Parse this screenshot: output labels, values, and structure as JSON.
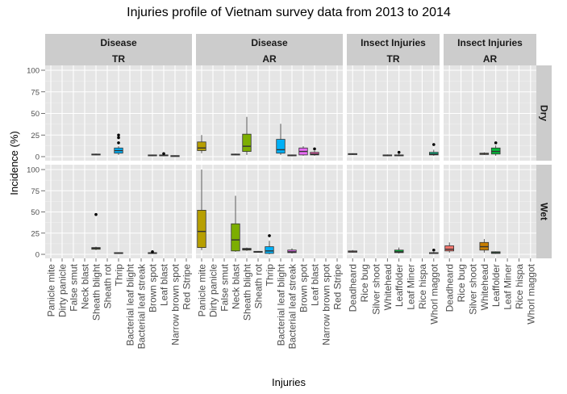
{
  "chart_data": {
    "type": "box",
    "title": "Injuries profile of Vietnam survey data from 2013 to 2014",
    "xlabel": "Injuries",
    "ylabel": "Incidence (%)",
    "ylim": [
      0,
      100
    ],
    "y_ticks": [
      0,
      25,
      50,
      75,
      100
    ],
    "grid": true,
    "legend": "none",
    "panel_background": "#e5e5e5",
    "strip_background": "#cccccc",
    "grid_color": "#ffffff",
    "facet_columns": [
      {
        "id": "disease_tr",
        "label_top": "Disease",
        "label_bottom": "TR",
        "categories": [
          "Panicle mite",
          "Dirty panicle",
          "False smut",
          "Neck blast",
          "Sheath blight",
          "Sheath rot",
          "Thrip",
          "Bacterial leaf blight",
          "Bacterial leaf streak",
          "Brown spot",
          "Leaf blast",
          "Narrow brown spot",
          "Red Stripe"
        ]
      },
      {
        "id": "disease_ar",
        "label_top": "Disease",
        "label_bottom": "AR",
        "categories": [
          "Panicle mite",
          "Dirty panicle",
          "False smut",
          "Neck blast",
          "Sheath blight",
          "Sheath rot",
          "Thrip",
          "Bacterial leaf blight",
          "Bacterial leaf streak",
          "Brown spot",
          "Leaf blast",
          "Narrow brown spot",
          "Red Stripe"
        ]
      },
      {
        "id": "insect_tr",
        "label_top": "Insect Injuries",
        "label_bottom": "TR",
        "categories": [
          "Deadheard",
          "Rice bug",
          "Silver shoot",
          "Whitehead",
          "Leaffolder",
          "Leaf Miner",
          "Rice hispa",
          "Whorl maggot"
        ]
      },
      {
        "id": "insect_ar",
        "label_top": "Insect Injuries",
        "label_bottom": "AR",
        "categories": [
          "Deadheard",
          "Rice bug",
          "Silver shoot",
          "Whitehead",
          "Leaffolder",
          "Leaf Miner",
          "Rice hispa",
          "Whorl maggot"
        ]
      }
    ],
    "facet_rows": [
      {
        "id": "dry",
        "label": "Dry"
      },
      {
        "id": "wet",
        "label": "Wet"
      }
    ],
    "category_colors": {
      "Panicle mite": "#F8766D",
      "Dirty panicle": "#B79F00",
      "False smut": "#E58700",
      "Neck blast": "#C99800",
      "Sheath blight": "#7CAE00",
      "Sheath rot": "#A3A500",
      "Thrip": "#00B0F6",
      "Bacterial leaf blight": "#00BAE0",
      "Bacterial leaf streak": "#00C0AF",
      "Brown spot": "#E76BF3",
      "Leaf blast": "#FF62BC",
      "Narrow brown spot": "#B983FF",
      "Red Stripe": "#9590FF",
      "Deadheard": "#F8766D",
      "Rice bug": "#DE8C00",
      "Silver shoot": "#B79F00",
      "Whitehead": "#C77D00",
      "Leaffolder": "#00BA38",
      "Leaf Miner": "#00BFC4",
      "Rice hispa": "#619CFF",
      "Whorl maggot": "#00C08B"
    },
    "boxes": [
      {
        "facet": "disease_tr",
        "row": "dry",
        "category": "Sheath blight",
        "min": 1.5,
        "q1": 2,
        "median": 2.5,
        "q3": 3,
        "max": 3.5,
        "outliers": [],
        "fill": "#7CAE00"
      },
      {
        "facet": "disease_tr",
        "row": "dry",
        "category": "Thrip",
        "min": 2,
        "q1": 4,
        "median": 7,
        "q3": 10,
        "max": 12,
        "outliers": [
          16,
          22,
          25
        ],
        "fill": "#00B0F6"
      },
      {
        "facet": "disease_tr",
        "row": "dry",
        "category": "Brown spot",
        "min": 0.5,
        "q1": 1,
        "median": 1.5,
        "q3": 2,
        "max": 2.5,
        "outliers": [],
        "fill": "#E76BF3"
      },
      {
        "facet": "disease_tr",
        "row": "dry",
        "category": "Leaf blast",
        "min": 0.5,
        "q1": 1,
        "median": 1.5,
        "q3": 2,
        "max": 2.5,
        "outliers": [
          3.5
        ],
        "fill": "#FF62BC"
      },
      {
        "facet": "disease_tr",
        "row": "dry",
        "category": "Narrow brown spot",
        "min": 0.2,
        "q1": 0.5,
        "median": 0.8,
        "q3": 1.2,
        "max": 1.5,
        "outliers": [],
        "fill": "#B983FF"
      },
      {
        "facet": "disease_ar",
        "row": "dry",
        "category": "Panicle mite",
        "min": 4,
        "q1": 7,
        "median": 10,
        "q3": 17,
        "max": 25,
        "outliers": [],
        "fill": "#B79F00"
      },
      {
        "facet": "disease_ar",
        "row": "dry",
        "category": "Neck blast",
        "min": 1.5,
        "q1": 2,
        "median": 2.5,
        "q3": 3,
        "max": 3.5,
        "outliers": [],
        "fill": "#C99800"
      },
      {
        "facet": "disease_ar",
        "row": "dry",
        "category": "Sheath blight",
        "min": 2,
        "q1": 6,
        "median": 12,
        "q3": 26,
        "max": 46,
        "outliers": [],
        "fill": "#7CAE00"
      },
      {
        "facet": "disease_ar",
        "row": "dry",
        "category": "Bacterial leaf blight",
        "min": 2,
        "q1": 4,
        "median": 8,
        "q3": 20,
        "max": 38,
        "outliers": [],
        "fill": "#00B0F6"
      },
      {
        "facet": "disease_ar",
        "row": "dry",
        "category": "Bacterial leaf streak",
        "min": 0.5,
        "q1": 1,
        "median": 1.5,
        "q3": 2,
        "max": 2.5,
        "outliers": [],
        "fill": "#00C0AF"
      },
      {
        "facet": "disease_ar",
        "row": "dry",
        "category": "Brown spot",
        "min": 1,
        "q1": 2,
        "median": 6,
        "q3": 10,
        "max": 12,
        "outliers": [],
        "fill": "#E76BF3"
      },
      {
        "facet": "disease_ar",
        "row": "dry",
        "category": "Leaf blast",
        "min": 1,
        "q1": 2,
        "median": 3,
        "q3": 5,
        "max": 7,
        "outliers": [
          9
        ],
        "fill": "#FF62BC"
      },
      {
        "facet": "insect_tr",
        "row": "dry",
        "category": "Deadheard",
        "min": 2,
        "q1": 2.5,
        "median": 3,
        "q3": 3.5,
        "max": 4,
        "outliers": [],
        "fill": "#F8766D"
      },
      {
        "facet": "insect_tr",
        "row": "dry",
        "category": "Whitehead",
        "min": 0.5,
        "q1": 1,
        "median": 1.5,
        "q3": 2,
        "max": 2.5,
        "outliers": [],
        "fill": "#C77D00"
      },
      {
        "facet": "insect_tr",
        "row": "dry",
        "category": "Leaffolder",
        "min": 0.5,
        "q1": 1,
        "median": 1.5,
        "q3": 2,
        "max": 3,
        "outliers": [
          5
        ],
        "fill": "#00BA38"
      },
      {
        "facet": "insect_tr",
        "row": "dry",
        "category": "Whorl maggot",
        "min": 1,
        "q1": 2,
        "median": 3,
        "q3": 5,
        "max": 8,
        "outliers": [
          14
        ],
        "fill": "#00C08B"
      },
      {
        "facet": "insect_ar",
        "row": "dry",
        "category": "Whitehead",
        "min": 2,
        "q1": 2.5,
        "median": 3,
        "q3": 4,
        "max": 5,
        "outliers": [],
        "fill": "#C77D00"
      },
      {
        "facet": "insect_ar",
        "row": "dry",
        "category": "Leaffolder",
        "min": 1,
        "q1": 3,
        "median": 6,
        "q3": 10,
        "max": 13,
        "outliers": [
          16
        ],
        "fill": "#00BA38"
      },
      {
        "facet": "disease_tr",
        "row": "wet",
        "category": "Sheath blight",
        "min": 5,
        "q1": 6,
        "median": 7,
        "q3": 8,
        "max": 9,
        "outliers": [
          47
        ],
        "fill": "#7CAE00"
      },
      {
        "facet": "disease_tr",
        "row": "wet",
        "category": "Thrip",
        "min": 0.5,
        "q1": 1,
        "median": 1.5,
        "q3": 2,
        "max": 2.5,
        "outliers": [],
        "fill": "#00B0F6"
      },
      {
        "facet": "disease_tr",
        "row": "wet",
        "category": "Brown spot",
        "min": 0.5,
        "q1": 1,
        "median": 1.5,
        "q3": 2,
        "max": 2.5,
        "outliers": [
          3
        ],
        "fill": "#E76BF3"
      },
      {
        "facet": "disease_ar",
        "row": "wet",
        "category": "Panicle mite",
        "min": 5,
        "q1": 8,
        "median": 27,
        "q3": 52,
        "max": 100,
        "outliers": [],
        "fill": "#B79F00"
      },
      {
        "facet": "disease_ar",
        "row": "wet",
        "category": "Neck blast",
        "min": 3,
        "q1": 4,
        "median": 17,
        "q3": 36,
        "max": 69,
        "outliers": [],
        "fill": "#7CAE00"
      },
      {
        "facet": "disease_ar",
        "row": "wet",
        "category": "Sheath blight",
        "min": 4,
        "q1": 5,
        "median": 6,
        "q3": 7,
        "max": 8,
        "outliers": [],
        "fill": "#A3A500"
      },
      {
        "facet": "disease_ar",
        "row": "wet",
        "category": "Sheath rot",
        "min": 2,
        "q1": 2.5,
        "median": 3,
        "q3": 3.5,
        "max": 4,
        "outliers": [],
        "fill": "#C99800"
      },
      {
        "facet": "disease_ar",
        "row": "wet",
        "category": "Thrip",
        "min": 0,
        "q1": 1,
        "median": 4,
        "q3": 9,
        "max": 16,
        "outliers": [
          22
        ],
        "fill": "#00B0F6"
      },
      {
        "facet": "disease_ar",
        "row": "wet",
        "category": "Bacterial leaf streak",
        "min": 1,
        "q1": 2,
        "median": 3,
        "q3": 5,
        "max": 7,
        "outliers": [],
        "fill": "#E76BF3"
      },
      {
        "facet": "insect_tr",
        "row": "wet",
        "category": "Deadheard",
        "min": 2,
        "q1": 2.5,
        "median": 3,
        "q3": 4,
        "max": 5,
        "outliers": [],
        "fill": "#F8766D"
      },
      {
        "facet": "insect_tr",
        "row": "wet",
        "category": "Leaffolder",
        "min": 1,
        "q1": 2,
        "median": 3,
        "q3": 5,
        "max": 8,
        "outliers": [],
        "fill": "#00BA38"
      },
      {
        "facet": "insect_tr",
        "row": "wet",
        "category": "Whorl maggot",
        "min": 0.5,
        "q1": 1,
        "median": 1.5,
        "q3": 2,
        "max": 3,
        "outliers": [
          5
        ],
        "fill": "#00C08B"
      },
      {
        "facet": "insect_ar",
        "row": "wet",
        "category": "Deadheard",
        "min": 2,
        "q1": 4,
        "median": 6,
        "q3": 10,
        "max": 14,
        "outliers": [],
        "fill": "#F8766D"
      },
      {
        "facet": "insect_ar",
        "row": "wet",
        "category": "Whitehead",
        "min": 2,
        "q1": 5,
        "median": 9,
        "q3": 14,
        "max": 18,
        "outliers": [],
        "fill": "#C77D00"
      },
      {
        "facet": "insect_ar",
        "row": "wet",
        "category": "Leaffolder",
        "min": 0.5,
        "q1": 1,
        "median": 2,
        "q3": 3,
        "max": 3.5,
        "outliers": [],
        "fill": "#00BA38"
      }
    ]
  }
}
